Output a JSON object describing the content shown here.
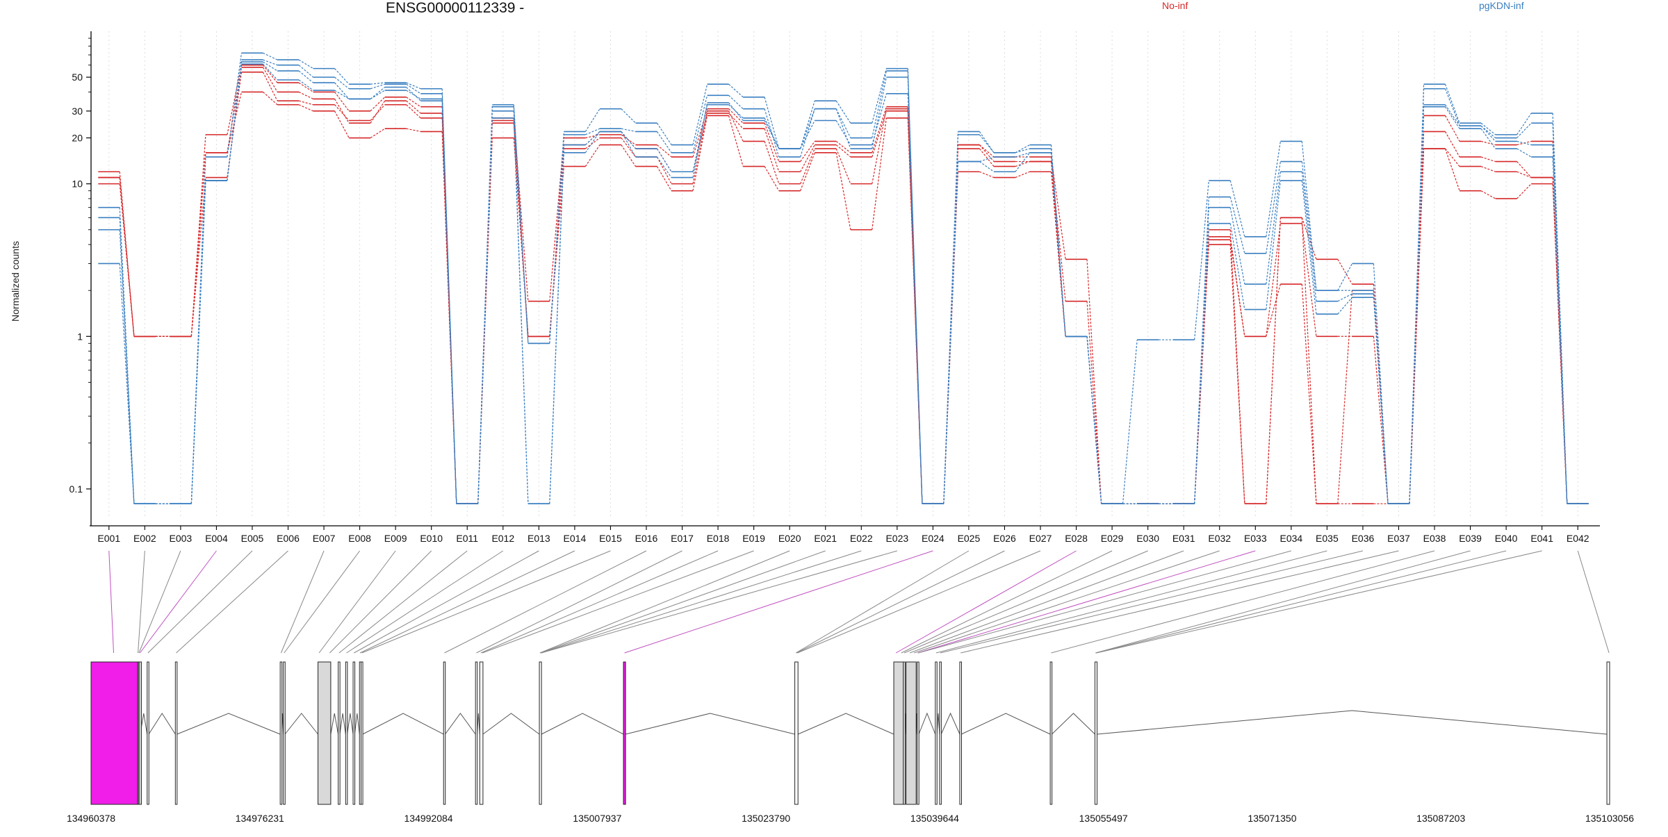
{
  "title": "ENSG00000112339 -",
  "legend": [
    {
      "label": "No-inf",
      "color": "#d62728"
    },
    {
      "label": "pgKDN-inf",
      "color": "#3a7fc1"
    }
  ],
  "colors": {
    "no_inf": "#d62728",
    "pgkdn_inf": "#3a7fc1",
    "constitutive_exon": "#d9d9d9",
    "highlight_exon": "#f01ee8",
    "highlight_link": "#c050c0",
    "link": "#888888"
  },
  "chart_data": {
    "type": "line",
    "title": "ENSG00000112339 -",
    "ylabel": "Normalized counts",
    "yscale": "log",
    "yticks": [
      0.1,
      1,
      10,
      20,
      30,
      50
    ],
    "ytick_labels": [
      "0.1",
      "1",
      "10",
      "20",
      "30",
      "50"
    ],
    "ylim": [
      0.065,
      100
    ],
    "grid": "vertical dotted",
    "categories": [
      "E001",
      "E002",
      "E003",
      "E004",
      "E005",
      "E006",
      "E007",
      "E008",
      "E009",
      "E010",
      "E011",
      "E012",
      "E013",
      "E014",
      "E015",
      "E016",
      "E017",
      "E018",
      "E019",
      "E020",
      "E021",
      "E022",
      "E023",
      "E024",
      "E025",
      "E026",
      "E027",
      "E028",
      "E029",
      "E030",
      "E031",
      "E032",
      "E033",
      "E034",
      "E035",
      "E036",
      "E037",
      "E038",
      "E039",
      "E040",
      "E041",
      "E042"
    ],
    "series": [
      {
        "name": "No-inf",
        "group": "no_inf",
        "values": [
          12,
          1,
          1,
          21,
          60,
          46,
          40,
          30,
          37,
          32,
          0.08,
          27,
          1.7,
          20,
          21,
          18,
          15,
          31,
          25,
          14,
          19,
          16,
          32,
          0.08,
          18,
          15,
          15,
          3.2,
          0.08,
          0.08,
          0.08,
          5,
          0.08,
          6,
          3.2,
          2.2,
          0.08,
          28,
          19,
          18,
          19,
          0.08
        ]
      },
      {
        "name": "No-inf",
        "group": "no_inf",
        "values": [
          11,
          1,
          1,
          16,
          58,
          40,
          36,
          25,
          35,
          29,
          0.08,
          26,
          1,
          18,
          22,
          17,
          12,
          29,
          23,
          12,
          18,
          15,
          30,
          0.08,
          18,
          14,
          14,
          1.7,
          0.08,
          0.08,
          0.08,
          4.5,
          1,
          5.5,
          1,
          1,
          0.08,
          22,
          15,
          14,
          11,
          0.08
        ]
      },
      {
        "name": "No-inf",
        "group": "no_inf",
        "values": [
          10,
          1,
          1,
          11,
          54,
          35,
          33,
          26,
          33,
          27,
          0.08,
          25,
          1,
          17,
          20,
          15,
          10,
          30,
          19,
          10,
          17,
          10,
          31,
          0.08,
          17,
          13,
          14,
          1,
          0.08,
          0.08,
          0.08,
          4.3,
          1,
          2.2,
          0.08,
          2,
          0.08,
          17,
          13,
          12,
          11,
          0.08
        ]
      },
      {
        "name": "No-inf",
        "group": "no_inf",
        "values": [
          11,
          1,
          1,
          16,
          40,
          33,
          30,
          20,
          23,
          22,
          0.08,
          20,
          1,
          13,
          18,
          13,
          9,
          28,
          13,
          9,
          16,
          5,
          27,
          0.08,
          12,
          11,
          12,
          1,
          0.08,
          0.08,
          0.08,
          4,
          0.08,
          6,
          0.08,
          0.08,
          0.08,
          17,
          9,
          8,
          10,
          0.08
        ]
      },
      {
        "name": "pgKDN-inf",
        "group": "pgkdn_inf",
        "values": [
          7,
          0.08,
          0.08,
          15,
          72,
          65,
          57,
          45,
          46,
          42,
          0.08,
          33,
          0.9,
          22,
          31,
          25,
          18,
          45,
          37,
          17,
          35,
          25,
          57,
          0.08,
          22,
          16,
          18,
          1,
          0.08,
          0.95,
          0.95,
          10.5,
          4.5,
          19,
          2,
          3,
          0.08,
          45,
          25,
          21,
          29,
          0.08
        ]
      },
      {
        "name": "pgKDN-inf",
        "group": "pgkdn_inf",
        "values": [
          6,
          0.08,
          0.08,
          10.5,
          65,
          60,
          50,
          42,
          45,
          39,
          0.08,
          32,
          0.9,
          21,
          23,
          22,
          16,
          38,
          31,
          15,
          31,
          20,
          55,
          0.08,
          21,
          16,
          17,
          1,
          0.08,
          0.08,
          0.08,
          8.2,
          3.5,
          14,
          2,
          2,
          0.08,
          42,
          24,
          20,
          25,
          0.08
        ]
      },
      {
        "name": "pgKDN-inf",
        "group": "pgkdn_inf",
        "values": [
          5,
          0.08,
          0.08,
          10.5,
          63,
          55,
          46,
          36,
          41,
          36,
          0.08,
          30,
          0.08,
          18,
          22,
          17,
          12,
          33,
          27,
          17,
          31,
          17,
          50,
          0.08,
          14,
          15,
          16,
          1,
          0.08,
          0.08,
          0.08,
          7,
          2.2,
          12,
          1.7,
          1.9,
          0.08,
          33,
          24,
          19,
          18,
          0.08
        ]
      },
      {
        "name": "pgKDN-inf",
        "group": "pgkdn_inf",
        "values": [
          3,
          0.08,
          0.08,
          10.5,
          61,
          48,
          41,
          36,
          43,
          35,
          0.08,
          27,
          0.08,
          16,
          22,
          15,
          11,
          34,
          26,
          17,
          26,
          18,
          39,
          0.08,
          14,
          12,
          16,
          1,
          0.08,
          0.08,
          0.08,
          5.5,
          1.5,
          10.5,
          1.4,
          1.8,
          0.08,
          32,
          23,
          17,
          15,
          0.08
        ]
      }
    ]
  },
  "gene_model": {
    "coord_labels": [
      "134960378",
      "134976231",
      "134992084",
      "135007937",
      "135023790",
      "135039644",
      "135055497",
      "135071350",
      "135087203",
      "135103056"
    ],
    "coord_ticks": [
      134960378,
      134976231,
      134992084,
      135007937,
      135023790,
      135039644,
      135055497,
      135071350,
      135087203,
      135103056
    ],
    "exons": [
      {
        "start": 134960378,
        "end": 134964760,
        "type": "highlight"
      },
      {
        "start": 134964760,
        "end": 134964820,
        "type": "normal"
      },
      {
        "start": 134964840,
        "end": 134964920,
        "type": "normal"
      },
      {
        "start": 134964950,
        "end": 134965000,
        "type": "normal"
      },
      {
        "start": 134965650,
        "end": 134965800,
        "type": "normal"
      },
      {
        "start": 134968300,
        "end": 134968450,
        "type": "normal"
      },
      {
        "start": 134978150,
        "end": 134978300,
        "type": "normal"
      },
      {
        "start": 134978450,
        "end": 134978600,
        "type": "normal"
      },
      {
        "start": 134981700,
        "end": 134982900,
        "type": "constitutive"
      },
      {
        "start": 134983600,
        "end": 134983750,
        "type": "normal"
      },
      {
        "start": 134984300,
        "end": 134984450,
        "type": "normal"
      },
      {
        "start": 134985000,
        "end": 134985150,
        "type": "normal"
      },
      {
        "start": 134985600,
        "end": 134985700,
        "type": "normal"
      },
      {
        "start": 134985750,
        "end": 134985900,
        "type": "normal"
      },
      {
        "start": 134993500,
        "end": 134993650,
        "type": "normal"
      },
      {
        "start": 134996500,
        "end": 134996650,
        "type": "normal"
      },
      {
        "start": 134996900,
        "end": 134997200,
        "type": "normal"
      },
      {
        "start": 135002500,
        "end": 135002700,
        "type": "normal"
      },
      {
        "start": 135010400,
        "end": 135010600,
        "type": "highlight"
      },
      {
        "start": 135026500,
        "end": 135026800,
        "type": "normal"
      },
      {
        "start": 135035800,
        "end": 135036700,
        "type": "constitutive"
      },
      {
        "start": 135036700,
        "end": 135036850,
        "type": "normal"
      },
      {
        "start": 135036950,
        "end": 135037900,
        "type": "constitutive"
      },
      {
        "start": 135038000,
        "end": 135038150,
        "type": "normal"
      },
      {
        "start": 135039700,
        "end": 135039850,
        "type": "normal"
      },
      {
        "start": 135040100,
        "end": 135040250,
        "type": "normal"
      },
      {
        "start": 135042000,
        "end": 135042150,
        "type": "normal"
      },
      {
        "start": 135050500,
        "end": 135050650,
        "type": "normal"
      },
      {
        "start": 135054700,
        "end": 135054900,
        "type": "normal"
      },
      {
        "start": 135102800,
        "end": 135103056,
        "type": "normal"
      }
    ],
    "links": [
      {
        "exon": "E001",
        "genomic": 134962500,
        "highlight": true
      },
      {
        "exon": "E002",
        "genomic": 134964790,
        "highlight": false
      },
      {
        "exon": "E003",
        "genomic": 134964880,
        "highlight": false
      },
      {
        "exon": "E004",
        "genomic": 134964975,
        "highlight": true
      },
      {
        "exon": "E005",
        "genomic": 134965720,
        "highlight": false
      },
      {
        "exon": "E006",
        "genomic": 134968380,
        "highlight": false
      },
      {
        "exon": "E007",
        "genomic": 134978230,
        "highlight": false
      },
      {
        "exon": "E008",
        "genomic": 134978520,
        "highlight": false
      },
      {
        "exon": "E009",
        "genomic": 134981800,
        "highlight": false
      },
      {
        "exon": "E010",
        "genomic": 134982800,
        "highlight": false
      },
      {
        "exon": "E011",
        "genomic": 134983680,
        "highlight": false
      },
      {
        "exon": "E012",
        "genomic": 134984380,
        "highlight": false
      },
      {
        "exon": "E013",
        "genomic": 134985080,
        "highlight": false
      },
      {
        "exon": "E014",
        "genomic": 134985650,
        "highlight": false
      },
      {
        "exon": "E015",
        "genomic": 134985820,
        "highlight": false
      },
      {
        "exon": "E016",
        "genomic": 134993580,
        "highlight": false
      },
      {
        "exon": "E017",
        "genomic": 134996580,
        "highlight": false
      },
      {
        "exon": "E018",
        "genomic": 134997000,
        "highlight": false
      },
      {
        "exon": "E019",
        "genomic": 134997150,
        "highlight": false
      },
      {
        "exon": "E020",
        "genomic": 135002550,
        "highlight": false
      },
      {
        "exon": "E021",
        "genomic": 135002600,
        "highlight": false
      },
      {
        "exon": "E022",
        "genomic": 135002650,
        "highlight": false
      },
      {
        "exon": "E023",
        "genomic": 135002690,
        "highlight": false
      },
      {
        "exon": "E024",
        "genomic": 135010500,
        "highlight": true
      },
      {
        "exon": "E025",
        "genomic": 135026600,
        "highlight": false
      },
      {
        "exon": "E026",
        "genomic": 135026650,
        "highlight": false
      },
      {
        "exon": "E027",
        "genomic": 135026750,
        "highlight": false
      },
      {
        "exon": "E028",
        "genomic": 135036000,
        "highlight": true
      },
      {
        "exon": "E029",
        "genomic": 135036500,
        "highlight": false
      },
      {
        "exon": "E030",
        "genomic": 135036780,
        "highlight": false
      },
      {
        "exon": "E031",
        "genomic": 135037300,
        "highlight": false
      },
      {
        "exon": "E032",
        "genomic": 135037700,
        "highlight": false
      },
      {
        "exon": "E033",
        "genomic": 135038050,
        "highlight": true
      },
      {
        "exon": "E034",
        "genomic": 135038100,
        "highlight": false
      },
      {
        "exon": "E035",
        "genomic": 135039780,
        "highlight": false
      },
      {
        "exon": "E036",
        "genomic": 135040180,
        "highlight": false
      },
      {
        "exon": "E037",
        "genomic": 135042080,
        "highlight": false
      },
      {
        "exon": "E038",
        "genomic": 135050580,
        "highlight": false
      },
      {
        "exon": "E039",
        "genomic": 135054750,
        "highlight": false
      },
      {
        "exon": "E040",
        "genomic": 135054800,
        "highlight": false
      },
      {
        "exon": "E041",
        "genomic": 135054850,
        "highlight": false
      },
      {
        "exon": "E042",
        "genomic": 135103000,
        "highlight": false
      }
    ]
  }
}
